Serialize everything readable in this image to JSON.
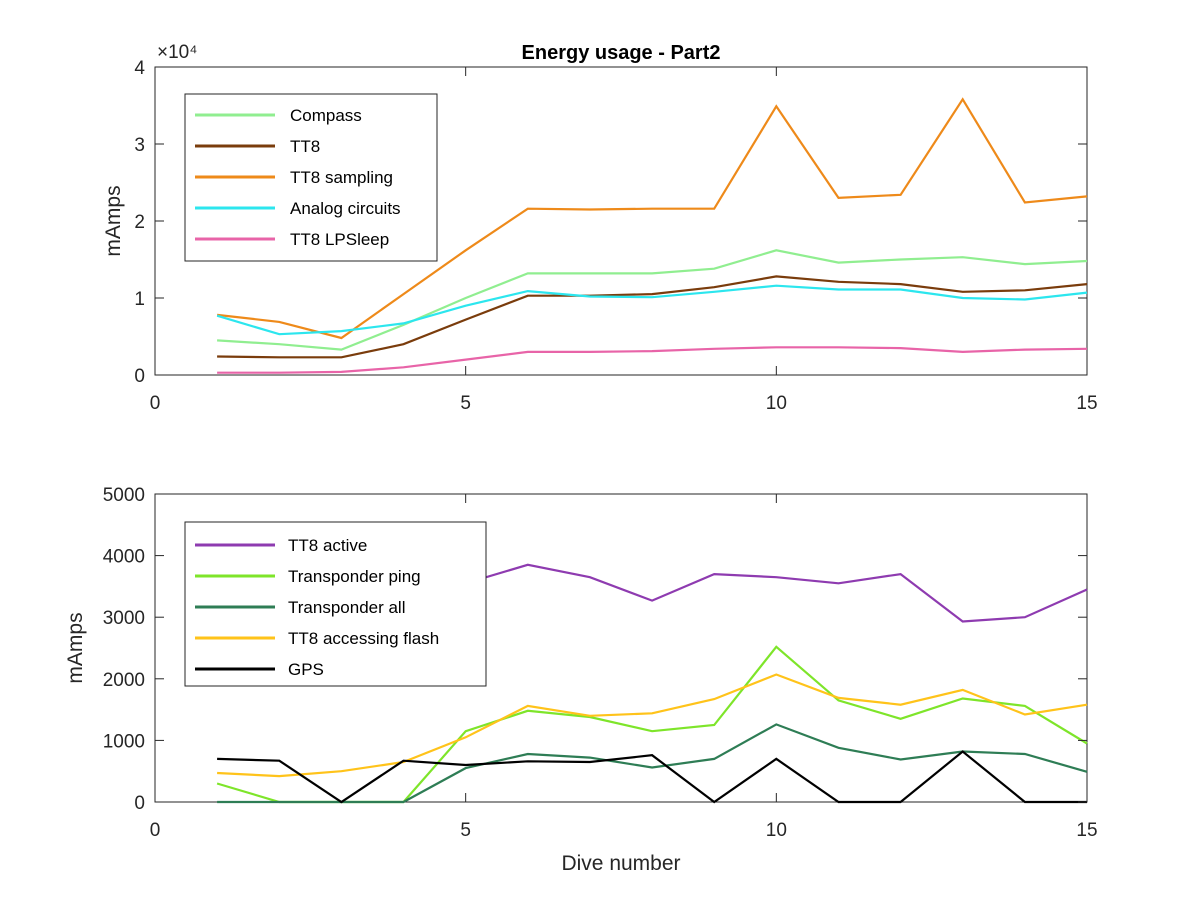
{
  "chart_data": [
    {
      "type": "line",
      "title": "Energy usage - Part2",
      "xlabel": "",
      "ylabel": "mAmps",
      "xlim": [
        0,
        15
      ],
      "ylim": [
        0,
        40000
      ],
      "xticks": [
        0,
        5,
        10,
        15
      ],
      "yticks": [
        0,
        1,
        2,
        3,
        4
      ],
      "y_exponent_label": "×10⁴",
      "grid": false,
      "legend_position": "top-left",
      "x": [
        1,
        2,
        3,
        4,
        5,
        6,
        7,
        8,
        9,
        10,
        11,
        12,
        13,
        14,
        15
      ],
      "series": [
        {
          "name": "Compass",
          "color": "#90EE90",
          "values": [
            4500,
            4000,
            3300,
            6500,
            10000,
            13200,
            13200,
            13200,
            13800,
            16200,
            14600,
            15000,
            15300,
            14400,
            14800
          ]
        },
        {
          "name": "TT8",
          "color": "#7A3C0C",
          "values": [
            2400,
            2300,
            2300,
            4000,
            7200,
            10300,
            10300,
            10500,
            11400,
            12800,
            12100,
            11800,
            10800,
            11000,
            11800
          ]
        },
        {
          "name": "TT8 sampling",
          "color": "#EE8A1A",
          "values": [
            7800,
            6900,
            4800,
            10500,
            16200,
            21600,
            21500,
            21600,
            21600,
            34900,
            23000,
            23400,
            35800,
            22400,
            23200
          ]
        },
        {
          "name": "Analog circuits",
          "color": "#2CE6EE",
          "values": [
            7700,
            5300,
            5700,
            6700,
            9000,
            10900,
            10200,
            10100,
            10800,
            11600,
            11100,
            11100,
            10000,
            9800,
            10700
          ]
        },
        {
          "name": "TT8 LPSleep",
          "color": "#E864A8",
          "values": [
            300,
            300,
            400,
            1000,
            2000,
            3000,
            3000,
            3100,
            3400,
            3600,
            3600,
            3500,
            3000,
            3300,
            3400
          ]
        }
      ]
    },
    {
      "type": "line",
      "title": "",
      "xlabel": "Dive number",
      "ylabel": "mAmps",
      "xlim": [
        0,
        15
      ],
      "ylim": [
        0,
        5000
      ],
      "xticks": [
        0,
        5,
        10,
        15
      ],
      "yticks": [
        0,
        1000,
        2000,
        3000,
        4000,
        5000
      ],
      "grid": false,
      "legend_position": "top-left",
      "x": [
        1,
        2,
        3,
        4,
        5,
        6,
        7,
        8,
        9,
        10,
        11,
        12,
        13,
        14,
        15
      ],
      "series": [
        {
          "name": "TT8 active",
          "color": "#8E3BB0",
          "values": [
            4000,
            3800,
            3700,
            3600,
            3550,
            3850,
            3650,
            3270,
            3700,
            3650,
            3550,
            3700,
            2930,
            3000,
            3450
          ]
        },
        {
          "name": "Transponder ping",
          "color": "#7EE52A",
          "values": [
            300,
            0,
            0,
            0,
            1150,
            1480,
            1380,
            1150,
            1250,
            2520,
            1650,
            1350,
            1680,
            1560,
            950
          ]
        },
        {
          "name": "Transponder all",
          "color": "#2E7D55",
          "values": [
            0,
            0,
            0,
            0,
            550,
            780,
            720,
            560,
            700,
            1260,
            880,
            690,
            820,
            780,
            490
          ]
        },
        {
          "name": "TT8 accessing flash",
          "color": "#FFC31A",
          "values": [
            470,
            420,
            500,
            650,
            1050,
            1560,
            1400,
            1440,
            1670,
            2070,
            1690,
            1580,
            1820,
            1420,
            1580
          ]
        },
        {
          "name": "GPS",
          "color": "#000000",
          "values": [
            700,
            670,
            0,
            670,
            600,
            660,
            650,
            760,
            0,
            700,
            0,
            0,
            820,
            0,
            0
          ]
        }
      ]
    }
  ]
}
